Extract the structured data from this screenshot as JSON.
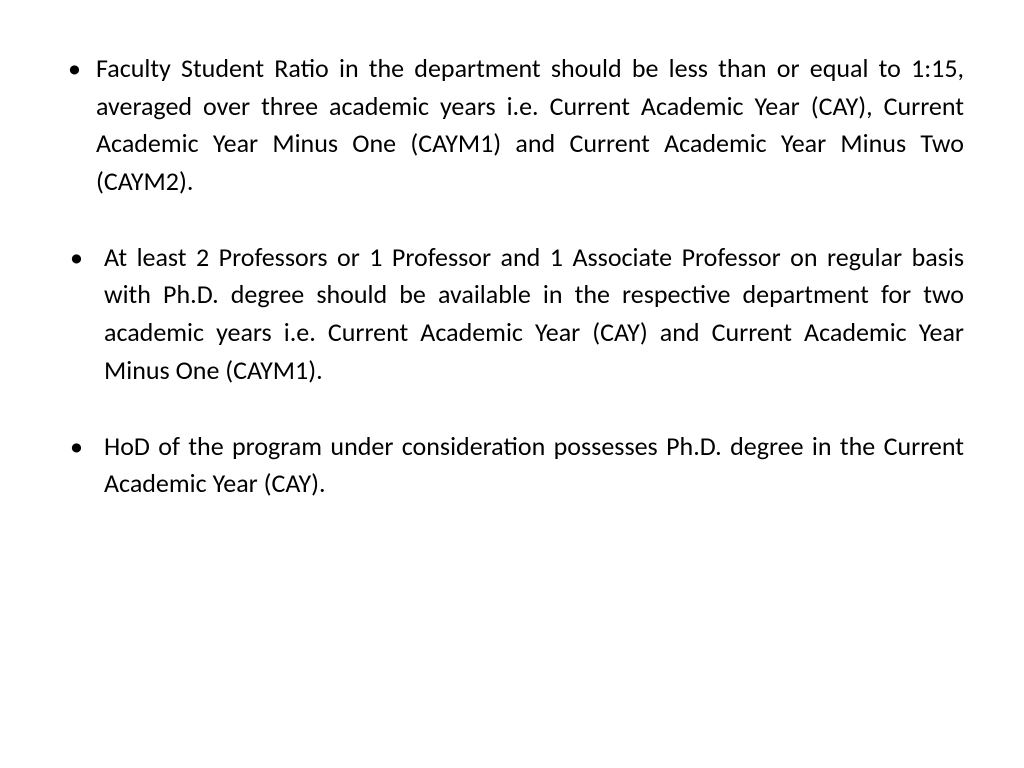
{
  "slide": {
    "background_color": "#ffffff",
    "text_color": "#000000",
    "font_family": "Calibri",
    "font_size_pt": 20,
    "line_height": 1.45,
    "text_align": "justify",
    "bullet_char": "•",
    "bullets": [
      {
        "text": "Faculty Student Ratio in the department should be less than or equal to 1:15, averaged over three academic years i.e. Current Academic Year (CAY), Current Academic Year Minus One (CAYM1) and Current Academic Year Minus Two (CAYM2).",
        "indent": false
      },
      {
        "text": "At least 2 Professors or 1 Professor and 1 Associate Professor on regular basis with Ph.D. degree should be available in the respective department for two academic years i.e. Current Academic Year (CAY) and Current Academic Year Minus One (CAYM1).",
        "indent": true
      },
      {
        "text": "HoD of the program under consideration possesses Ph.D. degree in the Current Academic Year (CAY).",
        "indent": true
      }
    ]
  }
}
